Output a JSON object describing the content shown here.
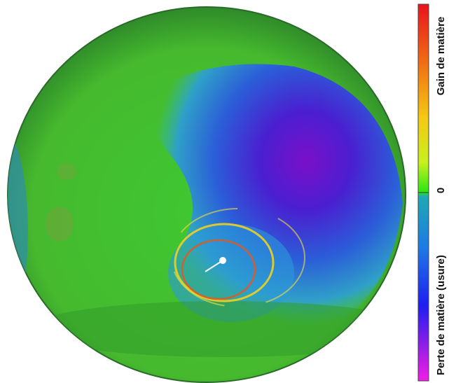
{
  "colorbar": {
    "gain_label": "Gain de matière",
    "zero_label": "0",
    "loss_label": "Perte de matière (usure)"
  }
}
